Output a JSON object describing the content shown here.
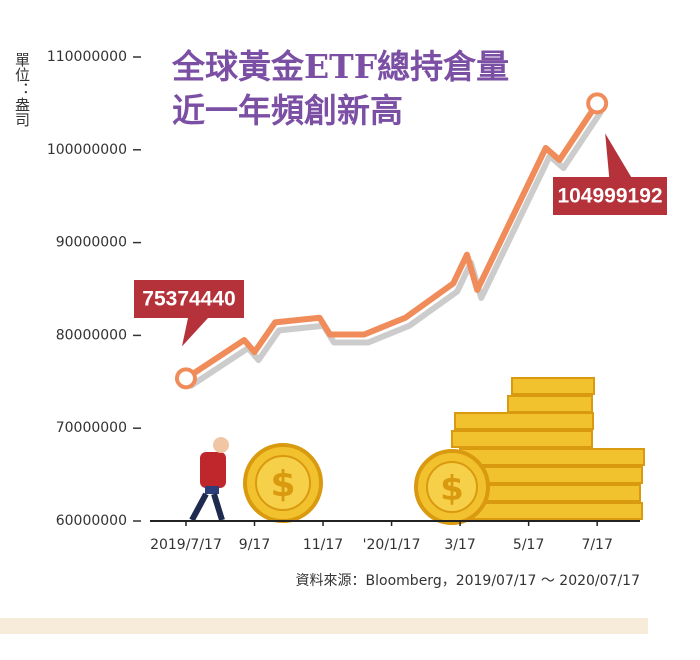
{
  "chart_data": {
    "type": "line",
    "title": "全球黃金ETF總持倉量",
    "subtitle": "近一年頻創新高",
    "y_label": "單位：盎司",
    "source": "資料來源：Bloomberg，2019/07/17 ～ 2020/07/17",
    "x": [
      0,
      1.7,
      2,
      2.6,
      3.9,
      4.2,
      5.2,
      6.4,
      7.8,
      8.2,
      8.5,
      10.5,
      10.9,
      12
    ],
    "series": [
      {
        "name": "全球黃金ETF總持倉量",
        "color": "#f08c5a",
        "values": [
          75374440,
          79500000,
          78200000,
          81400000,
          81900000,
          80100000,
          80100000,
          81900000,
          85600000,
          88700000,
          84900000,
          100200000,
          98900000,
          104999192
        ],
        "value_labels": [
          "75374440",
          null,
          null,
          null,
          null,
          null,
          null,
          null,
          null,
          null,
          null,
          null,
          null,
          "104999192"
        ]
      }
    ],
    "xlim": [
      -1.05,
      13.25
    ],
    "xticks": [
      {
        "value": 0,
        "label": "2019/7/17"
      },
      {
        "value": 2,
        "label": "9/17"
      },
      {
        "value": 4,
        "label": "11/17"
      },
      {
        "value": 6,
        "label": "'20/1/17"
      },
      {
        "value": 8,
        "label": "3/17"
      },
      {
        "value": 10,
        "label": "5/17"
      },
      {
        "value": 12,
        "label": "7/17"
      }
    ],
    "ylim": [
      60000000,
      110000000
    ],
    "yticks": [
      60000000,
      70000000,
      80000000,
      90000000,
      100000000,
      110000000
    ]
  }
}
